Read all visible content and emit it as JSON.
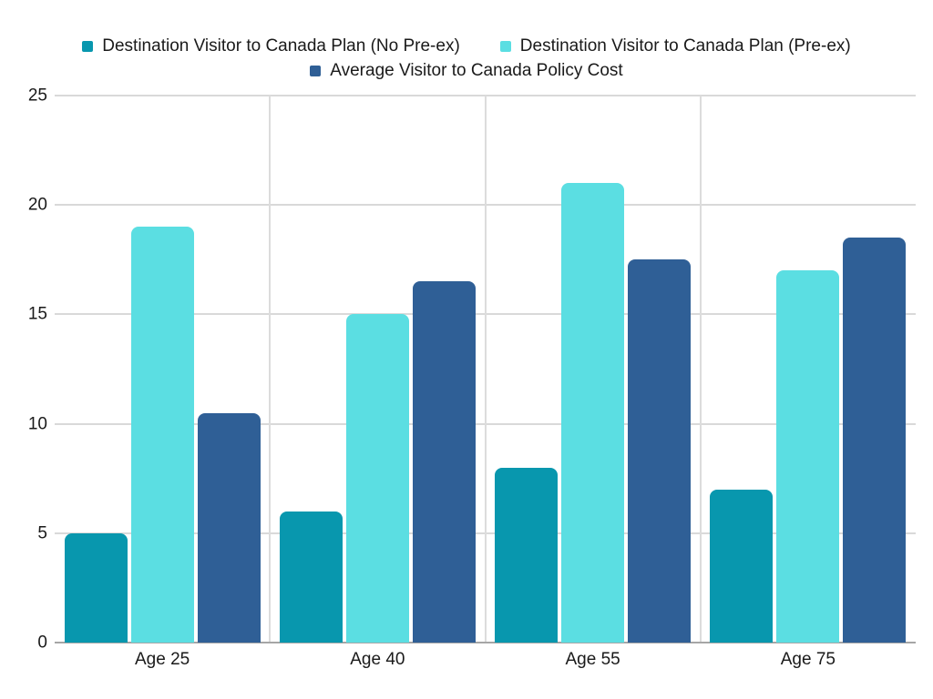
{
  "chart_data": {
    "type": "bar",
    "title": "",
    "xlabel": "",
    "ylabel": "",
    "categories": [
      "Age 25",
      "Age 40",
      "Age 55",
      "Age 75"
    ],
    "series": [
      {
        "name": "Destination Visitor to Canada Plan (No Pre-ex)",
        "color": "#0897AE",
        "values": [
          5,
          6,
          8,
          7
        ]
      },
      {
        "name": "Destination Visitor to Canada Plan (Pre-ex)",
        "color": "#5BDEE2",
        "values": [
          19,
          15,
          21,
          17
        ]
      },
      {
        "name": "Average Visitor to Canada Policy Cost",
        "color": "#2F5F96",
        "values": [
          10.5,
          16.5,
          17.5,
          18.5
        ]
      }
    ],
    "ylim": [
      0,
      25
    ],
    "yticks": [
      0,
      5,
      10,
      15,
      20,
      25
    ],
    "grid": {
      "horizontal": true,
      "vertical_category_separators": true
    },
    "legend_position": "top"
  },
  "style": {
    "background": "#ffffff",
    "axis_text_color": "#1a1a1a",
    "gridline_color": "#d9d9d9",
    "separator_color": "#dcdcdc",
    "baseline_color": "#a6a6a6"
  }
}
